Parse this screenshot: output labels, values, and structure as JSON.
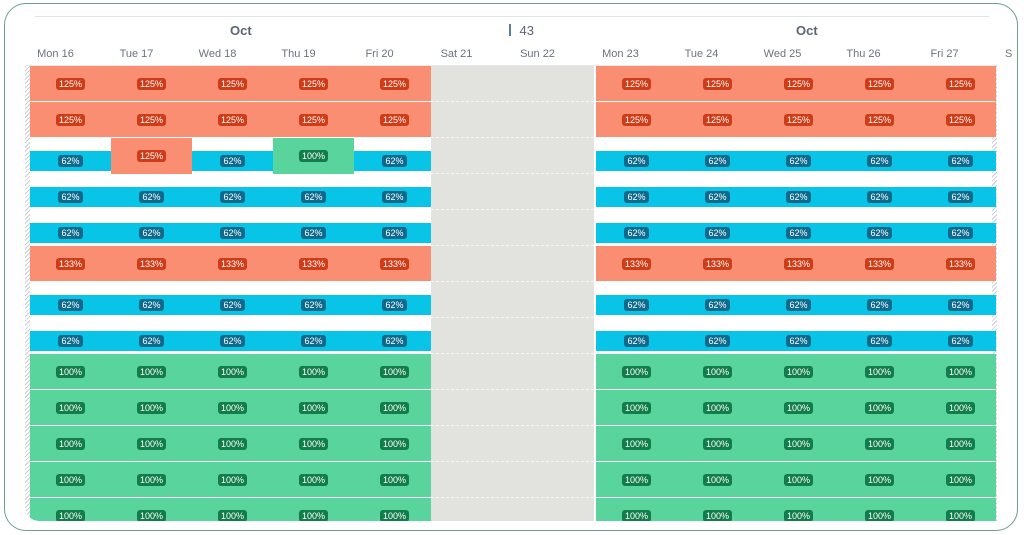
{
  "header": {
    "months": [
      "Oct",
      "Oct"
    ],
    "week_number": "43",
    "days": [
      "Mon 16",
      "Tue 17",
      "Wed 18",
      "Thu 19",
      "Fri 20",
      "Sat 21",
      "Sun 22",
      "Mon 23",
      "Tue 24",
      "Wed 25",
      "Thu 26",
      "Fri 27"
    ],
    "next_day_partial": "S"
  },
  "colors": {
    "over": "#f98e72",
    "under": "#08c4e6",
    "full": "#58d49c",
    "weekend": "#e2e2df"
  },
  "rows": [
    {
      "row_status": "over",
      "cells": [
        {
          "status": "over",
          "label": "125%"
        },
        {
          "status": "over",
          "label": "125%"
        },
        {
          "status": "over",
          "label": "125%"
        },
        {
          "status": "over",
          "label": "125%"
        },
        {
          "status": "over",
          "label": "125%"
        },
        {
          "status": "over",
          "label": "125%"
        },
        {
          "status": "over",
          "label": "125%"
        },
        {
          "status": "over",
          "label": "125%"
        },
        {
          "status": "over",
          "label": "125%"
        },
        {
          "status": "over",
          "label": "125%"
        }
      ]
    },
    {
      "row_status": "over",
      "cells": [
        {
          "status": "over",
          "label": "125%"
        },
        {
          "status": "over",
          "label": "125%"
        },
        {
          "status": "over",
          "label": "125%"
        },
        {
          "status": "over",
          "label": "125%"
        },
        {
          "status": "over",
          "label": "125%"
        },
        {
          "status": "over",
          "label": "125%"
        },
        {
          "status": "over",
          "label": "125%"
        },
        {
          "status": "over",
          "label": "125%"
        },
        {
          "status": "over",
          "label": "125%"
        },
        {
          "status": "over",
          "label": "125%"
        }
      ]
    },
    {
      "row_status": "under",
      "cells": [
        {
          "status": "under",
          "label": "62%"
        },
        {
          "status": "over",
          "label": "125%"
        },
        {
          "status": "under",
          "label": "62%"
        },
        {
          "status": "full",
          "label": "100%"
        },
        {
          "status": "under",
          "label": "62%"
        },
        {
          "status": "under",
          "label": "62%"
        },
        {
          "status": "under",
          "label": "62%"
        },
        {
          "status": "under",
          "label": "62%"
        },
        {
          "status": "under",
          "label": "62%"
        },
        {
          "status": "under",
          "label": "62%"
        }
      ]
    },
    {
      "row_status": "under",
      "cells": [
        {
          "status": "under",
          "label": "62%"
        },
        {
          "status": "under",
          "label": "62%"
        },
        {
          "status": "under",
          "label": "62%"
        },
        {
          "status": "under",
          "label": "62%"
        },
        {
          "status": "under",
          "label": "62%"
        },
        {
          "status": "under",
          "label": "62%"
        },
        {
          "status": "under",
          "label": "62%"
        },
        {
          "status": "under",
          "label": "62%"
        },
        {
          "status": "under",
          "label": "62%"
        },
        {
          "status": "under",
          "label": "62%"
        }
      ]
    },
    {
      "row_status": "under",
      "cells": [
        {
          "status": "under",
          "label": "62%"
        },
        {
          "status": "under",
          "label": "62%"
        },
        {
          "status": "under",
          "label": "62%"
        },
        {
          "status": "under",
          "label": "62%"
        },
        {
          "status": "under",
          "label": "62%"
        },
        {
          "status": "under",
          "label": "62%"
        },
        {
          "status": "under",
          "label": "62%"
        },
        {
          "status": "under",
          "label": "62%"
        },
        {
          "status": "under",
          "label": "62%"
        },
        {
          "status": "under",
          "label": "62%"
        }
      ]
    },
    {
      "row_status": "over",
      "cells": [
        {
          "status": "over",
          "label": "133%"
        },
        {
          "status": "over",
          "label": "133%"
        },
        {
          "status": "over",
          "label": "133%"
        },
        {
          "status": "over",
          "label": "133%"
        },
        {
          "status": "over",
          "label": "133%"
        },
        {
          "status": "over",
          "label": "133%"
        },
        {
          "status": "over",
          "label": "133%"
        },
        {
          "status": "over",
          "label": "133%"
        },
        {
          "status": "over",
          "label": "133%"
        },
        {
          "status": "over",
          "label": "133%"
        }
      ]
    },
    {
      "row_status": "under",
      "cells": [
        {
          "status": "under",
          "label": "62%"
        },
        {
          "status": "under",
          "label": "62%"
        },
        {
          "status": "under",
          "label": "62%"
        },
        {
          "status": "under",
          "label": "62%"
        },
        {
          "status": "under",
          "label": "62%"
        },
        {
          "status": "under",
          "label": "62%"
        },
        {
          "status": "under",
          "label": "62%"
        },
        {
          "status": "under",
          "label": "62%"
        },
        {
          "status": "under",
          "label": "62%"
        },
        {
          "status": "under",
          "label": "62%"
        }
      ]
    },
    {
      "row_status": "under",
      "cells": [
        {
          "status": "under",
          "label": "62%"
        },
        {
          "status": "under",
          "label": "62%"
        },
        {
          "status": "under",
          "label": "62%"
        },
        {
          "status": "under",
          "label": "62%"
        },
        {
          "status": "under",
          "label": "62%"
        },
        {
          "status": "under",
          "label": "62%"
        },
        {
          "status": "under",
          "label": "62%"
        },
        {
          "status": "under",
          "label": "62%"
        },
        {
          "status": "under",
          "label": "62%"
        },
        {
          "status": "under",
          "label": "62%"
        }
      ]
    },
    {
      "row_status": "full",
      "cells": [
        {
          "status": "full",
          "label": "100%"
        },
        {
          "status": "full",
          "label": "100%"
        },
        {
          "status": "full",
          "label": "100%"
        },
        {
          "status": "full",
          "label": "100%"
        },
        {
          "status": "full",
          "label": "100%"
        },
        {
          "status": "full",
          "label": "100%"
        },
        {
          "status": "full",
          "label": "100%"
        },
        {
          "status": "full",
          "label": "100%"
        },
        {
          "status": "full",
          "label": "100%"
        },
        {
          "status": "full",
          "label": "100%"
        }
      ]
    },
    {
      "row_status": "full",
      "cells": [
        {
          "status": "full",
          "label": "100%"
        },
        {
          "status": "full",
          "label": "100%"
        },
        {
          "status": "full",
          "label": "100%"
        },
        {
          "status": "full",
          "label": "100%"
        },
        {
          "status": "full",
          "label": "100%"
        },
        {
          "status": "full",
          "label": "100%"
        },
        {
          "status": "full",
          "label": "100%"
        },
        {
          "status": "full",
          "label": "100%"
        },
        {
          "status": "full",
          "label": "100%"
        },
        {
          "status": "full",
          "label": "100%"
        }
      ]
    },
    {
      "row_status": "full",
      "cells": [
        {
          "status": "full",
          "label": "100%"
        },
        {
          "status": "full",
          "label": "100%"
        },
        {
          "status": "full",
          "label": "100%"
        },
        {
          "status": "full",
          "label": "100%"
        },
        {
          "status": "full",
          "label": "100%"
        },
        {
          "status": "full",
          "label": "100%"
        },
        {
          "status": "full",
          "label": "100%"
        },
        {
          "status": "full",
          "label": "100%"
        },
        {
          "status": "full",
          "label": "100%"
        },
        {
          "status": "full",
          "label": "100%"
        }
      ]
    },
    {
      "row_status": "full",
      "cells": [
        {
          "status": "full",
          "label": "100%"
        },
        {
          "status": "full",
          "label": "100%"
        },
        {
          "status": "full",
          "label": "100%"
        },
        {
          "status": "full",
          "label": "100%"
        },
        {
          "status": "full",
          "label": "100%"
        },
        {
          "status": "full",
          "label": "100%"
        },
        {
          "status": "full",
          "label": "100%"
        },
        {
          "status": "full",
          "label": "100%"
        },
        {
          "status": "full",
          "label": "100%"
        },
        {
          "status": "full",
          "label": "100%"
        }
      ]
    },
    {
      "row_status": "full",
      "cells": [
        {
          "status": "full",
          "label": "100%"
        },
        {
          "status": "full",
          "label": "100%"
        },
        {
          "status": "full",
          "label": "100%"
        },
        {
          "status": "full",
          "label": "100%"
        },
        {
          "status": "full",
          "label": "100%"
        },
        {
          "status": "full",
          "label": "100%"
        },
        {
          "status": "full",
          "label": "100%"
        },
        {
          "status": "full",
          "label": "100%"
        },
        {
          "status": "full",
          "label": "100%"
        },
        {
          "status": "full",
          "label": "100%"
        }
      ]
    }
  ]
}
